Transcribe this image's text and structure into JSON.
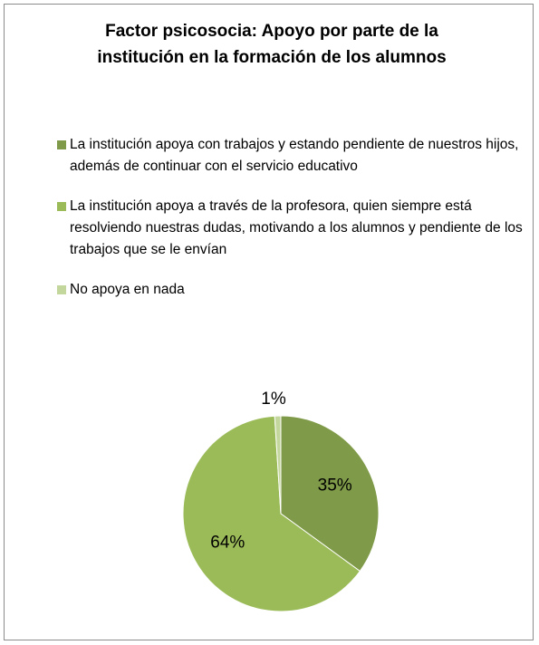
{
  "chart_data": {
    "type": "pie",
    "title": "Factor psicosocia: Apoyo por parte de la institución en la formación de los alumnos",
    "categories": [
      "La institución apoya con trabajos y estando pendiente de nuestros hijos, además de continuar con el servicio educativo",
      "La institución apoya a través de la profesora, quien siempre está resolviendo nuestras dudas, motivando a los alumnos y pendiente de los trabajos que se le envían",
      "No apoya en nada"
    ],
    "values": [
      35,
      64,
      1
    ],
    "value_labels": [
      "35%",
      "64%",
      "1%"
    ],
    "colors": [
      "#7f9a48",
      "#9bbb59",
      "#c3d69b"
    ],
    "legend": "top"
  }
}
